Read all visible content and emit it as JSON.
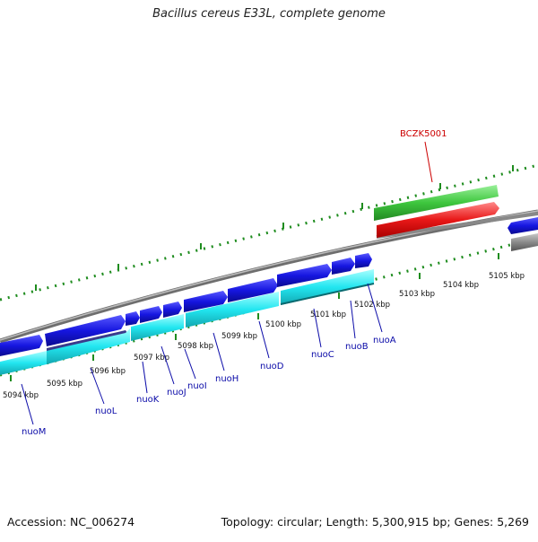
{
  "title": "Bacillus cereus E33L, complete genome",
  "footer": {
    "accession": "Accession: NC_006274",
    "summary": "Topology: circular; Length: 5,300,915 bp; Genes: 5,269"
  },
  "highlight_label": "BCZK5001",
  "outer_ticks": [
    "5094 kbp",
    "5095 kbp",
    "5096 kbp",
    "5097 kbp",
    "5098 kbp",
    "5099 kbp",
    "5100 kbp",
    "5101 kbp",
    "5102 kbp",
    "5103 kbp",
    "5104 kbp",
    "5105 kbp"
  ],
  "gene_labels": [
    "nuoM",
    "nuoL",
    "nuoK",
    "nuoJ",
    "nuoI",
    "nuoH",
    "nuoD",
    "nuoC",
    "nuoB",
    "nuoA"
  ],
  "colors": {
    "forward_cds": "#1a1adc",
    "forward_cds_dark": "#3a3a8c",
    "reverse_cds": "#22e6f0",
    "gc_track": "#888888",
    "highlight_green": "#3ec63e",
    "highlight_red": "#e81818",
    "label_blue": "#0a0aa8",
    "label_red": "#cc0000",
    "tick_green": "#1e8c1e"
  }
}
